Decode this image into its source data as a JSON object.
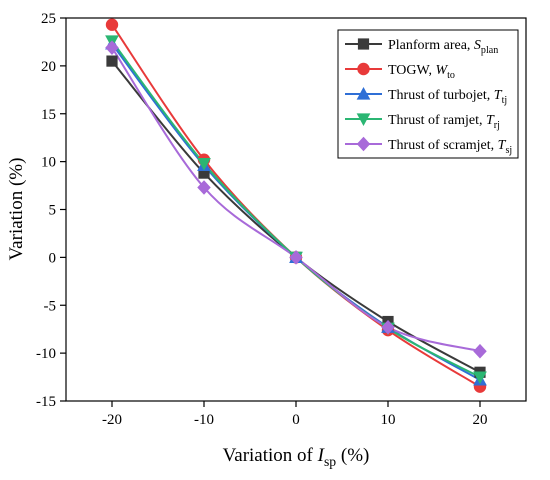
{
  "chart_data": {
    "type": "line",
    "x": [
      -20,
      -10,
      0,
      10,
      20
    ],
    "xlabel": {
      "main": "Variation of ",
      "italic": "I",
      "sub": "sp",
      "suffix": " (%)"
    },
    "ylabel": "Variation (%)",
    "xlim": [
      -25,
      25
    ],
    "ylim": [
      -15,
      25
    ],
    "xticks": [
      -20,
      -10,
      0,
      10,
      20
    ],
    "yticks": [
      -15,
      -10,
      -5,
      0,
      5,
      10,
      15,
      20,
      25
    ],
    "legend_position": "top-right",
    "grid": false,
    "series": [
      {
        "name": "Planform area, ",
        "symbol": "S",
        "sub": "plan",
        "marker": "square",
        "color": "#3a3a3a",
        "values": [
          20.5,
          8.8,
          0,
          -6.7,
          -12.0
        ]
      },
      {
        "name": "TOGW, ",
        "symbol": "W",
        "sub": "to",
        "marker": "circle",
        "color": "#e83a3a",
        "values": [
          24.3,
          10.2,
          0,
          -7.6,
          -13.5
        ]
      },
      {
        "name": "Thrust of turbojet, ",
        "symbol": "T",
        "sub": "tj",
        "marker": "triangle-up",
        "color": "#2f6fd6",
        "values": [
          22.3,
          9.6,
          0,
          -7.3,
          -12.8
        ]
      },
      {
        "name": "Thrust of ramjet, ",
        "symbol": "T",
        "sub": "rj",
        "marker": "triangle-down",
        "color": "#2bb673",
        "values": [
          22.6,
          9.8,
          0,
          -7.4,
          -12.5
        ]
      },
      {
        "name": "Thrust of scramjet, ",
        "symbol": "T",
        "sub": "sj",
        "marker": "diamond",
        "color": "#a86ad9",
        "values": [
          21.9,
          7.3,
          0,
          -7.3,
          -9.8
        ]
      }
    ]
  }
}
